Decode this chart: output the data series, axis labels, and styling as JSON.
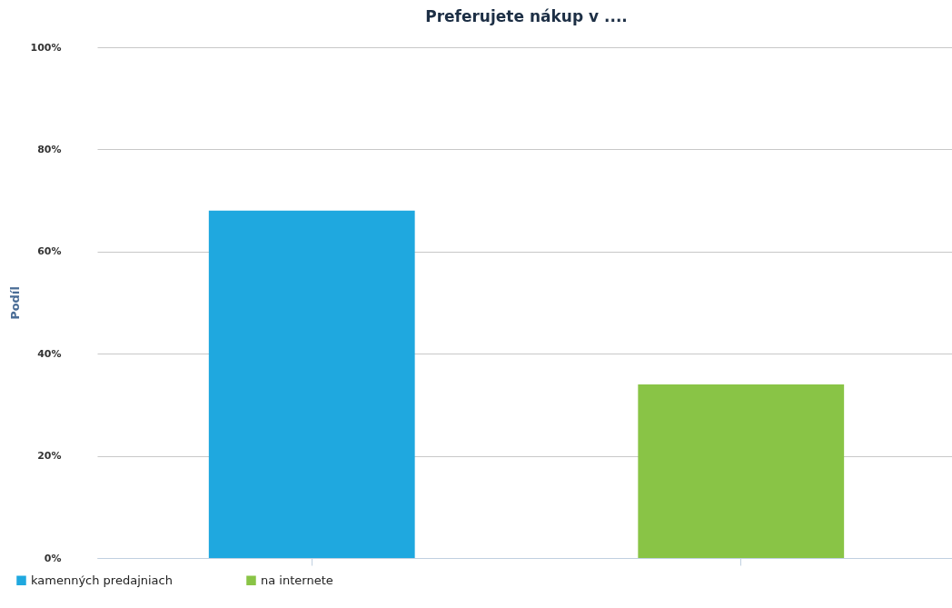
{
  "chart_data": {
    "type": "bar",
    "title": "Preferujete nákup v ....",
    "ylabel": "Podíl",
    "categories": [
      null,
      null
    ],
    "series": [
      {
        "name": "kamenných predajniach",
        "color": "#1fa8df",
        "values": [
          68,
          null
        ]
      },
      {
        "name": "na internete",
        "color": "#89c446",
        "values": [
          null,
          34
        ]
      }
    ],
    "ylim": [
      0,
      100
    ],
    "yticks": [
      {
        "value": 0,
        "label": "0%"
      },
      {
        "value": 20,
        "label": "20%"
      },
      {
        "value": 40,
        "label": "40%"
      },
      {
        "value": 60,
        "label": "60%"
      },
      {
        "value": 80,
        "label": "80%"
      },
      {
        "value": 100,
        "label": "100%"
      }
    ],
    "grid": "y",
    "legend": "bottom left",
    "tick_labels": "y"
  }
}
